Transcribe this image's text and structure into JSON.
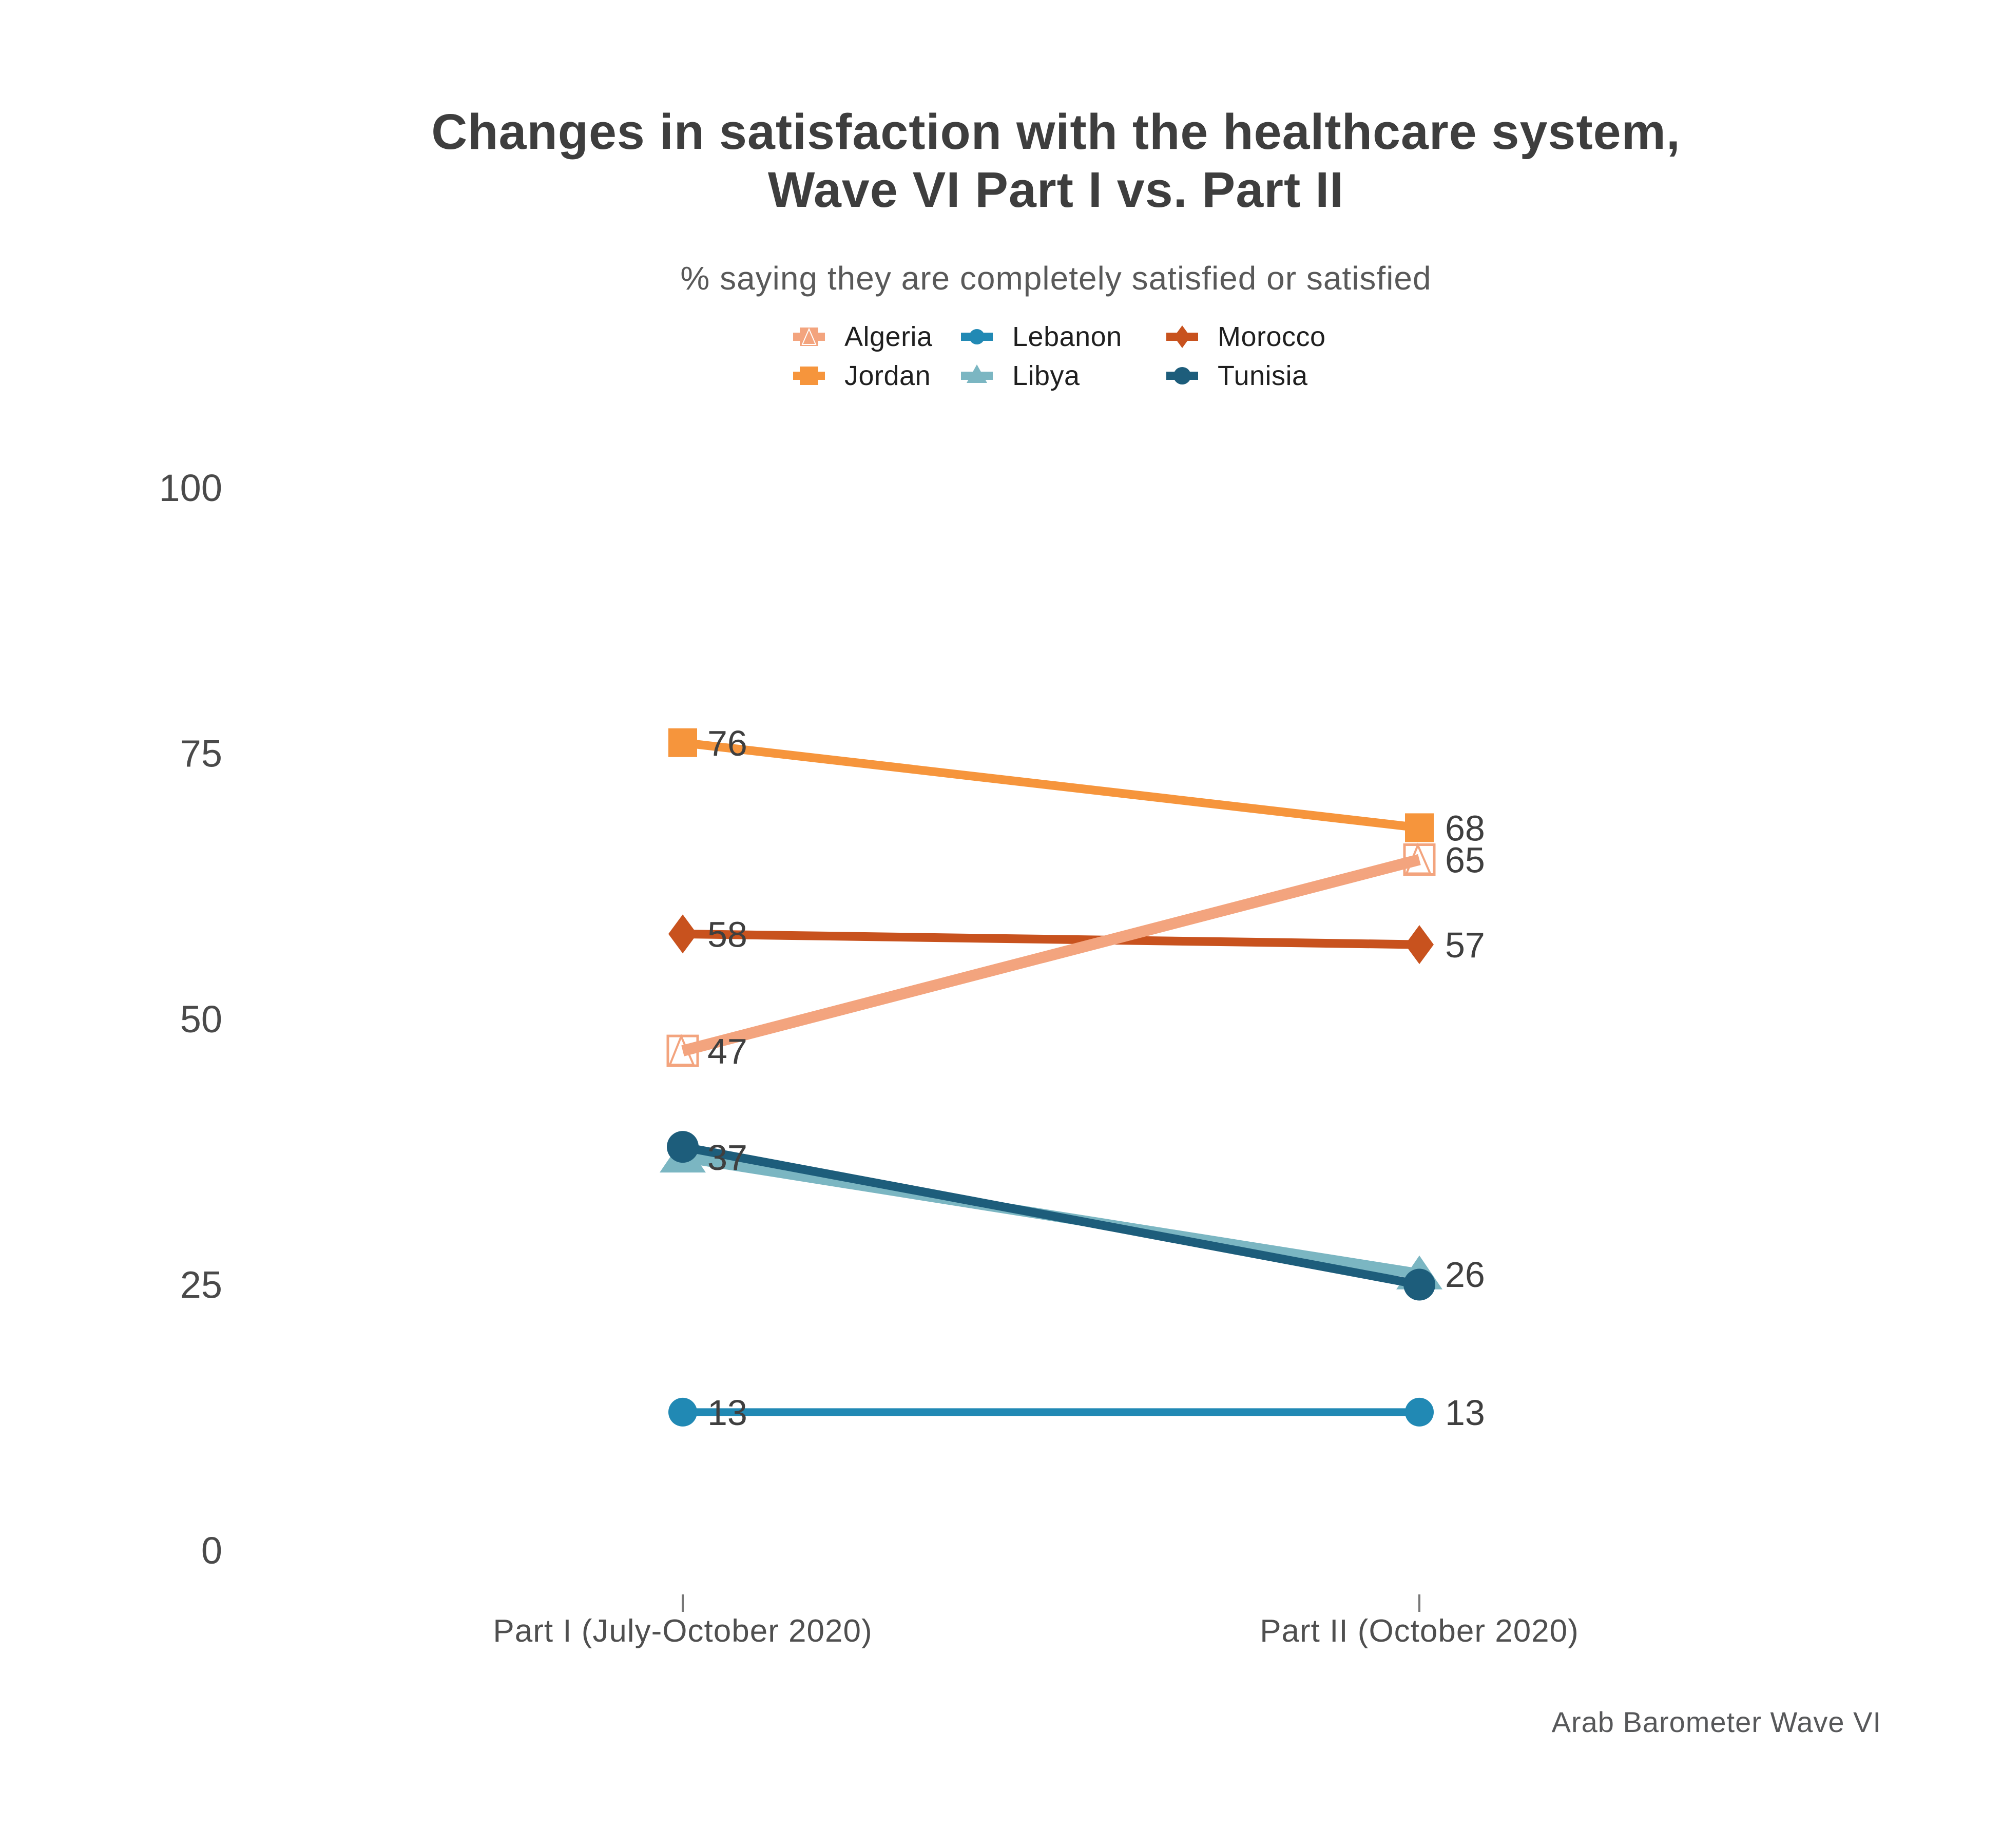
{
  "title": {
    "line1": "Changes in satisfaction with the healthcare system,",
    "line2": "Wave VI Part I vs. Part II"
  },
  "subtitle": "% saying they are completely satisfied or satisfied",
  "source": "Arab Barometer Wave VI",
  "chart_data": {
    "type": "line",
    "subtype": "slope",
    "x_categories": [
      "Part I (July-October 2020)",
      "Part II (October 2020)"
    ],
    "ylim": [
      0,
      100
    ],
    "yticks": [
      0,
      25,
      50,
      75,
      100
    ],
    "grid": false,
    "legend_position": "top-center",
    "legend_rows": [
      [
        "Algeria",
        "Lebanon",
        "Morocco"
      ],
      [
        "Jordan",
        "Libya",
        "Tunisia"
      ]
    ],
    "series": [
      {
        "name": "Algeria",
        "color": "#F3A47E",
        "marker": "open-square-triangle",
        "values": [
          47,
          65
        ],
        "point_labels": [
          "47",
          "65"
        ]
      },
      {
        "name": "Jordan",
        "color": "#F6953C",
        "marker": "square",
        "values": [
          76,
          68
        ],
        "point_labels": [
          "76",
          "68"
        ]
      },
      {
        "name": "Lebanon",
        "color": "#2189B4",
        "marker": "circle-small",
        "values": [
          13,
          13
        ],
        "point_labels": [
          "13",
          "13"
        ]
      },
      {
        "name": "Libya",
        "color": "#7BB6C2",
        "marker": "triangle",
        "values": [
          37,
          26
        ],
        "point_labels": [
          "37",
          "26"
        ]
      },
      {
        "name": "Morocco",
        "color": "#C8521E",
        "marker": "diamond",
        "values": [
          58,
          57
        ],
        "point_labels": [
          "58",
          "57"
        ]
      },
      {
        "name": "Tunisia",
        "color": "#1D5D7B",
        "marker": "circle",
        "values": [
          37,
          25
        ],
        "point_labels": [
          "37",
          ""
        ]
      }
    ]
  }
}
